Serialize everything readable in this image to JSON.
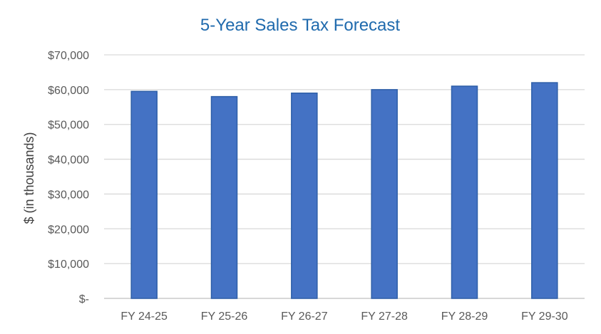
{
  "chart_data": {
    "type": "bar",
    "title": "5-Year Sales Tax Forecast",
    "xlabel": "",
    "ylabel": "$ (in thousands)",
    "categories": [
      "FY 24-25",
      "FY 25-26",
      "FY 26-27",
      "FY 27-28",
      "FY 28-29",
      "FY 29-30"
    ],
    "values": [
      59500,
      58000,
      59000,
      60000,
      61000,
      62000
    ],
    "ylim": [
      0,
      70000
    ],
    "yticks": [
      0,
      10000,
      20000,
      30000,
      40000,
      50000,
      60000,
      70000
    ],
    "ytick_labels": [
      "$-",
      "$10,000",
      "$20,000",
      "$30,000",
      "$40,000",
      "$50,000",
      "$60,000",
      "$70,000"
    ],
    "grid": true,
    "legend": "none",
    "colors": {
      "bar_fill": "#4472c4",
      "bar_stroke": "#2e5fa8",
      "title": "#1f6aad",
      "grid": "#d9d9d9"
    }
  }
}
